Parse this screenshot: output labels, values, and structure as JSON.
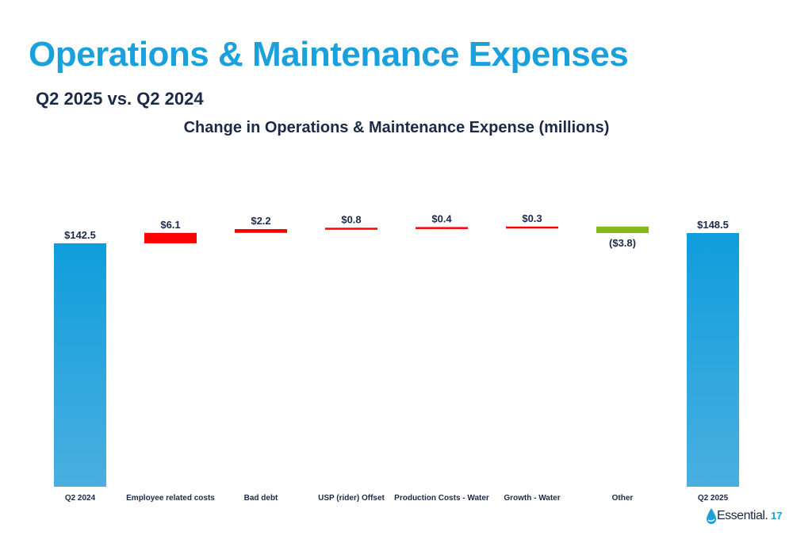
{
  "slide": {
    "title": "Operations & Maintenance Expenses",
    "subtitle": "Q2 2025 vs. Q2 2024",
    "page_number": "17",
    "logo_text": "Essential."
  },
  "colors": {
    "total": "#1ba1dc",
    "increase": "#ff0000",
    "decrease": "#86b817",
    "title": "#1aa1dc",
    "text": "#1b2a47"
  },
  "chart_data": {
    "type": "bar",
    "subtype": "waterfall",
    "title": "Change in Operations & Maintenance Expense (millions)",
    "categories": [
      "Q2 2024",
      "Employee related costs",
      "Bad debt",
      "USP (rider) Offset",
      "Production Costs - Water",
      "Growth - Water",
      "Other",
      "Q2 2025"
    ],
    "values": [
      142.5,
      6.1,
      2.2,
      0.8,
      0.4,
      0.3,
      -3.8,
      148.5
    ],
    "kinds": [
      "total",
      "increase",
      "increase",
      "increase",
      "increase",
      "increase",
      "decrease",
      "total"
    ],
    "labels": [
      "$142.5",
      "$6.1",
      "$2.2",
      "$0.8",
      "$0.4",
      "$0.3",
      "($3.8)",
      "$148.5"
    ],
    "ylim": [
      0,
      160
    ],
    "grid": false,
    "legend": "none"
  }
}
